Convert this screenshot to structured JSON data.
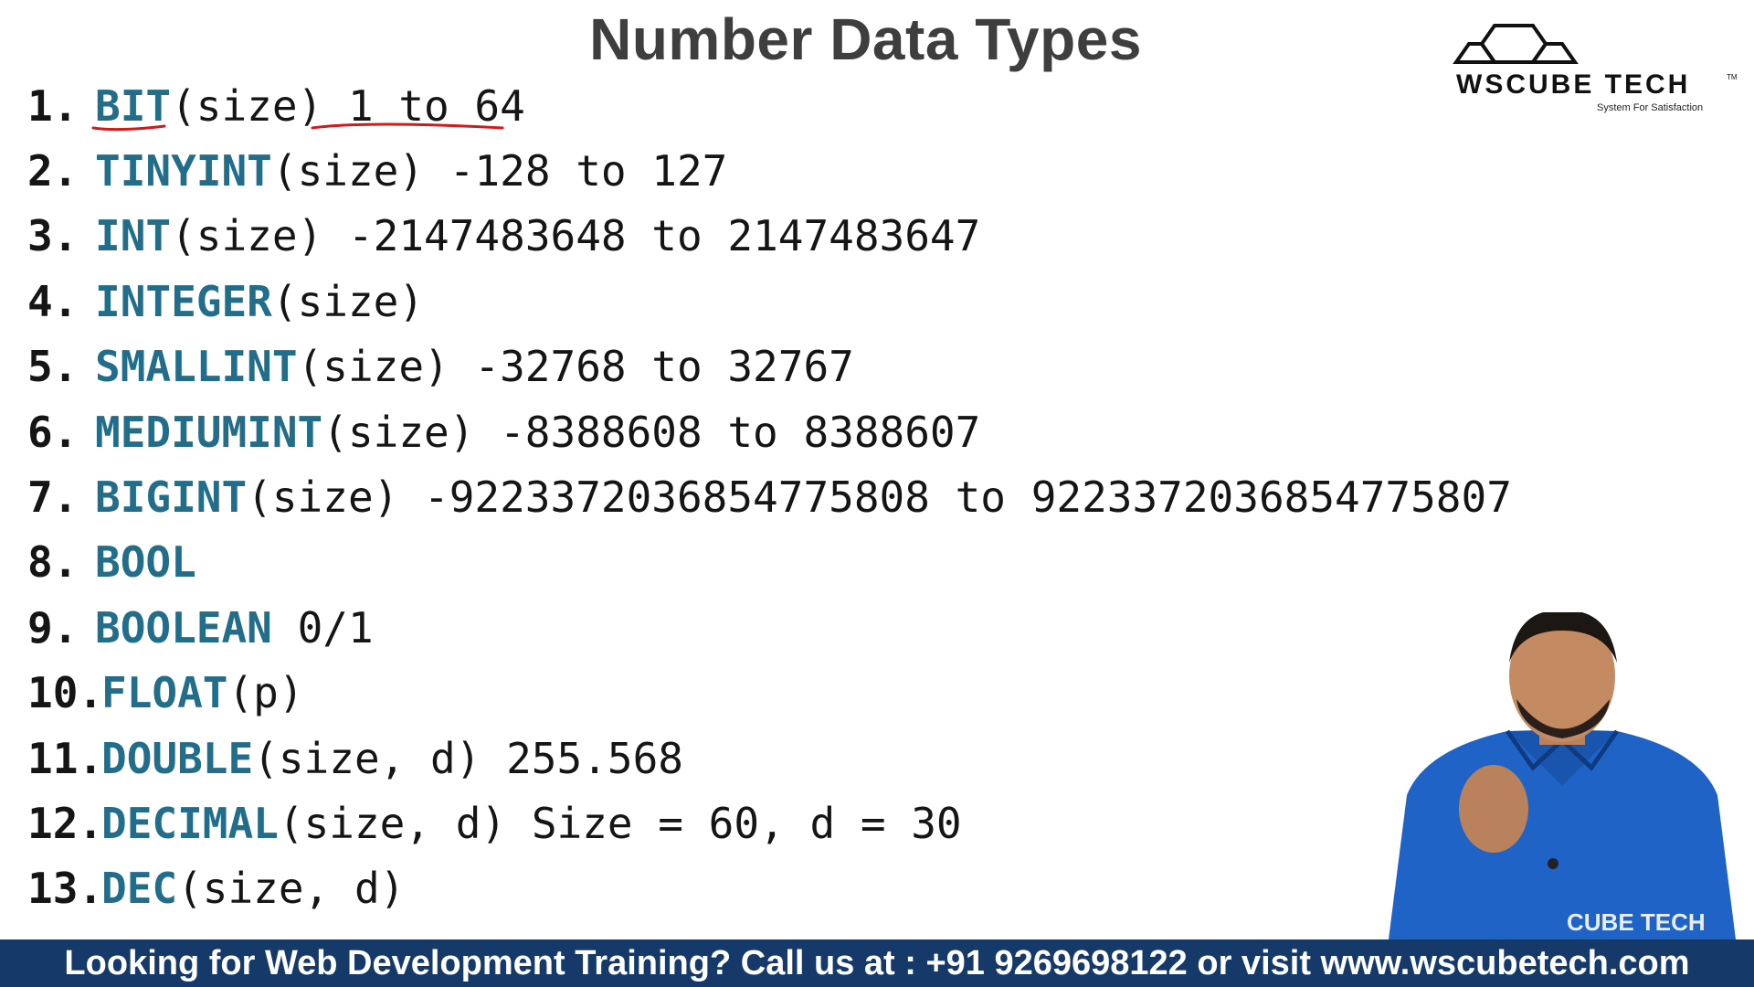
{
  "slide": {
    "title": "Number Data Types",
    "items": [
      {
        "number": "1.",
        "keyword": "BIT",
        "rest": "(size) 1 to 64"
      },
      {
        "number": "2.",
        "keyword": "TINYINT",
        "rest": "(size) -128 to 127"
      },
      {
        "number": "3.",
        "keyword": "INT",
        "rest": "(size) -2147483648 to 2147483647"
      },
      {
        "number": "4.",
        "keyword": "INTEGER",
        "rest": "(size)"
      },
      {
        "number": "5.",
        "keyword": "SMALLINT",
        "rest": "(size) -32768 to 32767"
      },
      {
        "number": "6.",
        "keyword": "MEDIUMINT",
        "rest": "(size) -8388608 to 8388607"
      },
      {
        "number": "7.",
        "keyword": "BIGINT",
        "rest": "(size) -9223372036854775808 to 9223372036854775807"
      },
      {
        "number": "8.",
        "keyword": "BOOL",
        "rest": ""
      },
      {
        "number": "9.",
        "keyword": "BOOLEAN",
        "rest": " 0/1"
      },
      {
        "number": "10.",
        "keyword": "FLOAT",
        "rest": "(p)"
      },
      {
        "number": "11.",
        "keyword": "DOUBLE",
        "rest": "(size, d) 255.568"
      },
      {
        "number": "12.",
        "keyword": "DECIMAL",
        "rest": "(size, d) Size = 60, d = 30"
      },
      {
        "number": "13.",
        "keyword": "DEC",
        "rest": "(size, d)"
      }
    ]
  },
  "logo": {
    "name": "WSCUBE TECH",
    "tm": "TM",
    "tagline": "System For Satisfaction"
  },
  "footer": {
    "text": "Looking for Web Development Training? Call us at : +91 9269698122 or visit www.wscubetech.com"
  },
  "presenter": {
    "shirt_text": "CUBE TECH"
  },
  "colors": {
    "keyword": "#226e8a",
    "footer_bg": "#153a6a",
    "annotation": "#d11a1a"
  }
}
